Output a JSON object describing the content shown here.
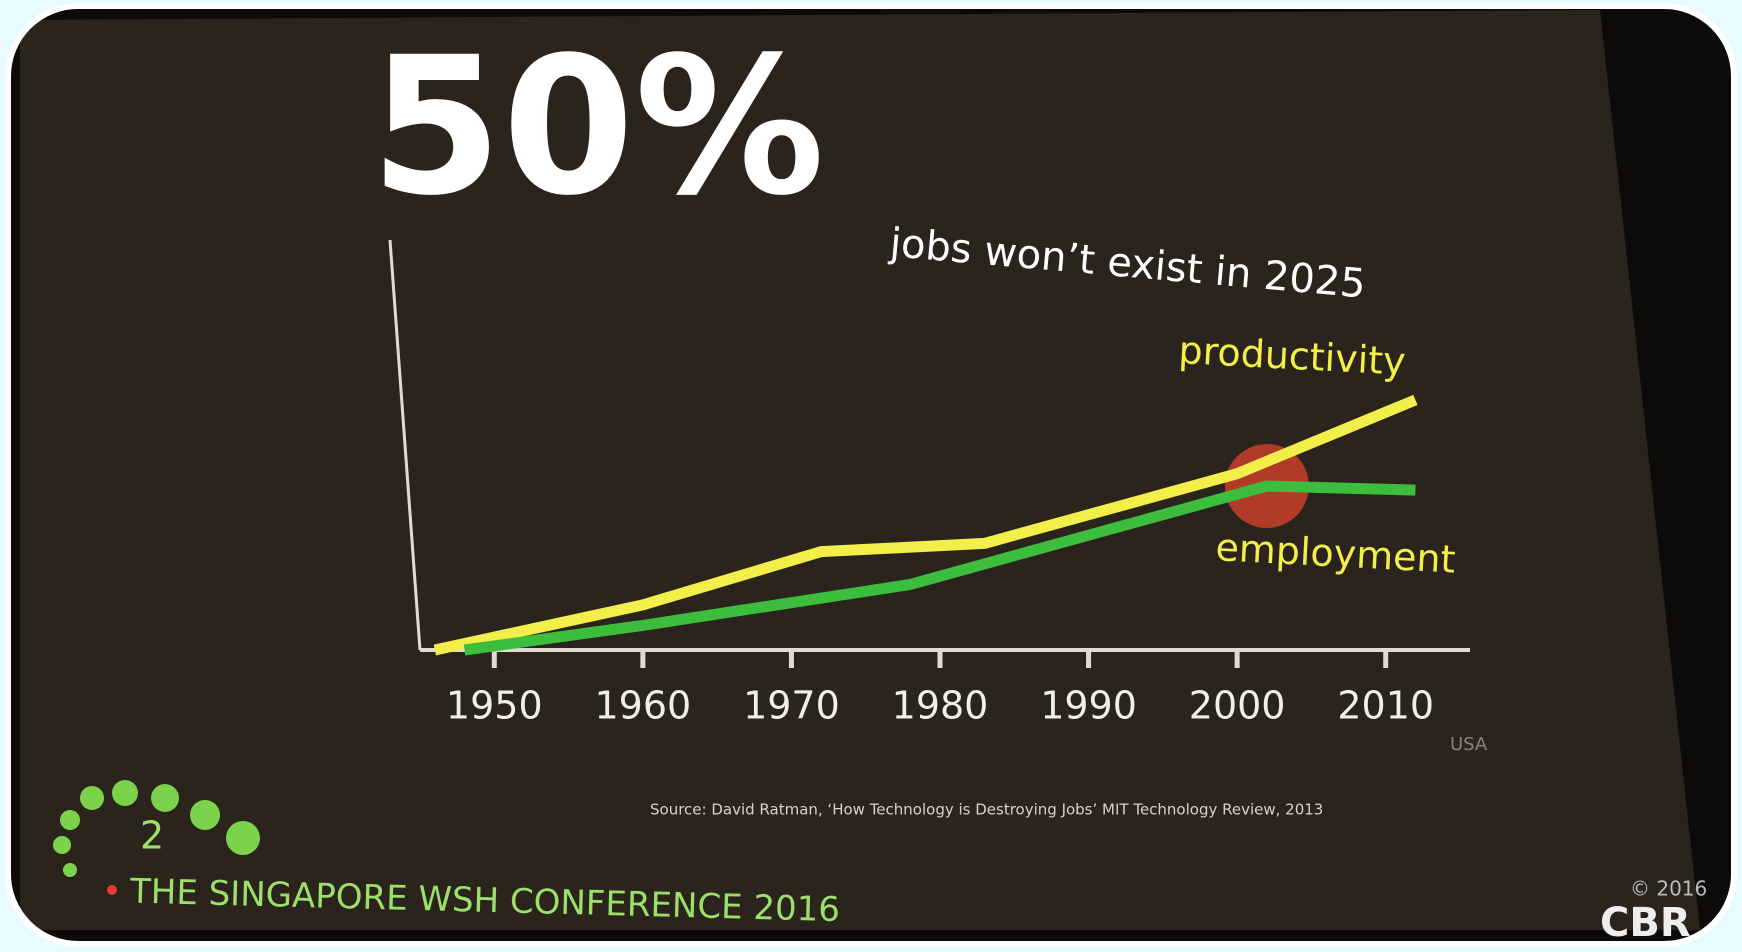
{
  "chart_data": {
    "type": "line",
    "title": "50%",
    "subtitle": "jobs won’t exist in 2025",
    "xlim": [
      1945,
      2015
    ],
    "xticks": [
      1950,
      1960,
      1970,
      1980,
      1990,
      2000,
      2010
    ],
    "ylim": [
      0,
      100
    ],
    "series": [
      {
        "name": "productivity",
        "color": "#f3ef4a",
        "x": [
          1946,
          1960,
          1972,
          1983,
          2000,
          2012
        ],
        "values": [
          0,
          11,
          24,
          26,
          43,
          61
        ]
      },
      {
        "name": "employment",
        "color": "#3dbd3d",
        "x": [
          1948,
          1960,
          1978,
          1992,
          2002,
          2012
        ],
        "values": [
          0,
          6,
          16,
          30,
          40,
          39
        ]
      }
    ],
    "annotation": "USA",
    "source": "Source: David Ratman, ‘How Technology is Destroying Jobs’ MIT Technology Review, 2013"
  },
  "footer": {
    "number": "2",
    "conference": "THE SINGAPORE WSH CONFERENCE 2016",
    "copyright": "© 2016",
    "logo": "CBR"
  }
}
